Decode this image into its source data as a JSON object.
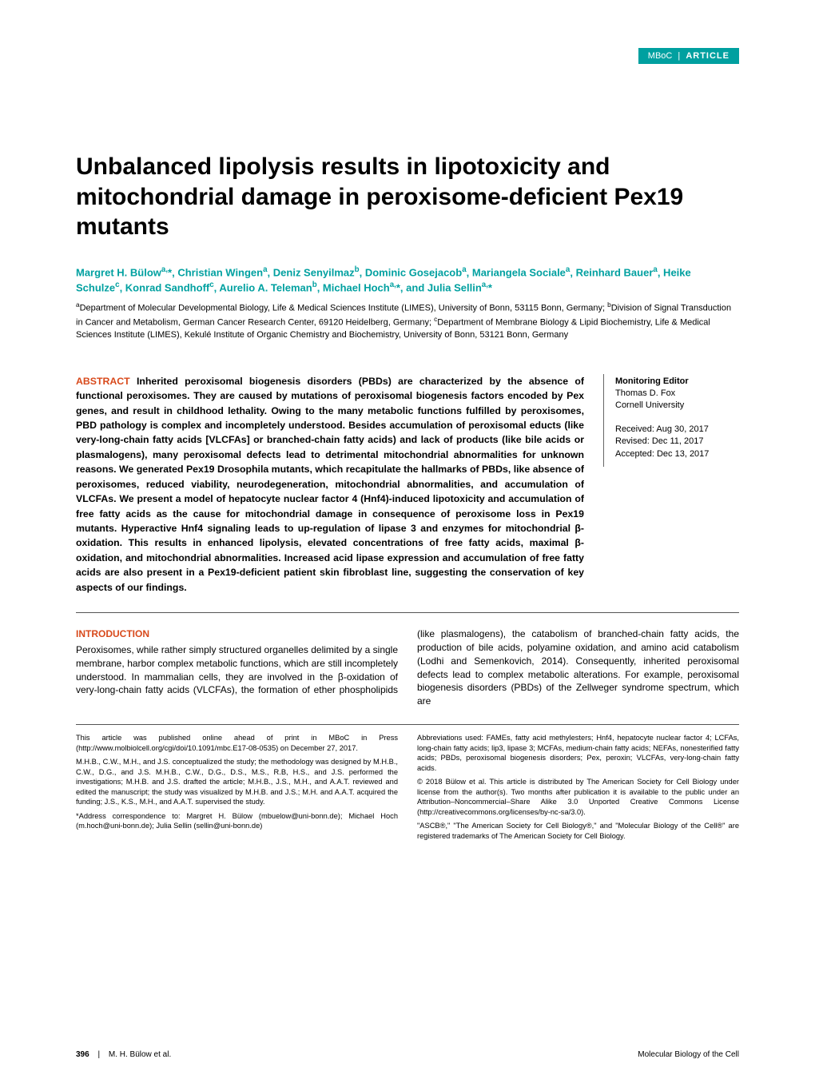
{
  "header": {
    "journal": "MBoC",
    "section": "ARTICLE",
    "bar_background": "#00a0a0",
    "bar_text_color": "#ffffff"
  },
  "title": "Unbalanced lipolysis results in lipotoxicity and mitochondrial damage in peroxisome-deficient Pex19 mutants",
  "authors_html": "Margret H. Bülow<sup>a,</sup>*, Christian Wingen<sup>a</sup>, Deniz Senyilmaz<sup>b</sup>, Dominic Gosejacob<sup>a</sup>, Mariangela Sociale<sup>a</sup>, Reinhard Bauer<sup>a</sup>, Heike Schulze<sup>c</sup>, Konrad Sandhoff<sup>c</sup>, Aurelio A. Teleman<sup>b</sup>, Michael Hoch<sup>a,</sup>*, and Julia Sellin<sup>a,</sup>*",
  "affiliations_html": "<sup>a</sup>Department of Molecular Developmental Biology, Life & Medical Sciences Institute (LIMES), University of Bonn, 53115 Bonn, Germany; <sup>b</sup>Division of Signal Transduction in Cancer and Metabolism, German Cancer Research Center, 69120 Heidelberg, Germany; <sup>c</sup>Department of Membrane Biology & Lipid Biochemistry, Life & Medical Sciences Institute (LIMES), Kekulé Institute of Organic Chemistry and Biochemistry, University of Bonn, 53121 Bonn, Germany",
  "abstract": {
    "label": "ABSTRACT",
    "text": "Inherited peroxisomal biogenesis disorders (PBDs) are characterized by the absence of functional peroxisomes. They are caused by mutations of peroxisomal biogenesis factors encoded by Pex genes, and result in childhood lethality. Owing to the many metabolic functions fulfilled by peroxisomes, PBD pathology is complex and incompletely understood. Besides accumulation of peroxisomal educts (like very-long-chain fatty acids [VLCFAs] or branched-chain fatty acids) and lack of products (like bile acids or plasmalogens), many peroxisomal defects lead to detrimental mitochondrial abnormalities for unknown reasons. We generated Pex19 Drosophila mutants, which recapitulate the hallmarks of PBDs, like absence of peroxisomes, reduced viability, neurodegeneration, mitochondrial abnormalities, and accumulation of VLCFAs. We present a model of hepatocyte nuclear factor 4 (Hnf4)-induced lipotoxicity and accumulation of free fatty acids as the cause for mitochondrial damage in consequence of peroxisome loss in Pex19 mutants. Hyperactive Hnf4 signaling leads to up-regulation of lipase 3 and enzymes for mitochondrial β-oxidation. This results in enhanced lipolysis, elevated concentrations of free fatty acids, maximal β-oxidation, and mitochondrial abnormalities. Increased acid lipase expression and accumulation of free fatty acids are also present in a Pex19-deficient patient skin fibroblast line, suggesting the conservation of key aspects of our findings."
  },
  "sidebar": {
    "editor_label": "Monitoring Editor",
    "editor_name": "Thomas D. Fox",
    "editor_affil": "Cornell University",
    "received": "Received: Aug 30, 2017",
    "revised": "Revised: Dec 11, 2017",
    "accepted": "Accepted: Dec 13, 2017"
  },
  "introduction": {
    "heading": "INTRODUCTION",
    "text": "Peroxisomes, while rather simply structured organelles delimited by a single membrane, harbor complex metabolic functions, which are still incompletely understood. In mammalian cells, they are involved in the β-oxidation of very-long-chain fatty acids (VLCFAs), the formation of ether phospholipids (like plasmalogens), the catabolism of branched-chain fatty acids, the production of bile acids, polyamine oxidation, and amino acid catabolism (Lodhi and Semenkovich, 2014). Consequently, inherited peroxisomal defects lead to complex metabolic alterations. For example, peroxisomal biogenesis disorders (PBDs) of the Zellweger syndrome spectrum, which are"
  },
  "footnotes": {
    "p1": "This article was published online ahead of print in MBoC in Press (http://www.molbiolcell.org/cgi/doi/10.1091/mbc.E17-08-0535) on December 27, 2017.",
    "p2": "M.H.B., C.W., M.H., and J.S. conceptualized the study; the methodology was designed by M.H.B., C.W., D.G., and J.S. M.H.B., C.W., D.G., D.S., M.S., R.B, H.S., and J.S. performed the investigations; M.H.B. and J.S. drafted the article; M.H.B., J.S., M.H., and A.A.T. reviewed and edited the manuscript; the study was visualized by M.H.B. and J.S.; M.H. and A.A.T. acquired the funding; J.S., K.S., M.H., and A.A.T. supervised the study.",
    "p3": "*Address correspondence to: Margret H. Bülow (mbuelow@uni-bonn.de); Michael Hoch (m.hoch@uni-bonn.de); Julia Sellin (sellin@uni-bonn.de)",
    "p4": "Abbreviations used: FAMEs, fatty acid methylesters; Hnf4, hepatocyte nuclear factor 4; LCFAs, long-chain fatty acids; lip3, lipase 3; MCFAs, medium-chain fatty acids; NEFAs, nonesterified fatty acids; PBDs, peroxisomal biogenesis disorders; Pex, peroxin; VLCFAs, very-long-chain fatty acids.",
    "p5": "© 2018 Bülow et al. This article is distributed by The American Society for Cell Biology under license from the author(s). Two months after publication it is available to the public under an Attribution–Noncommercial–Share Alike 3.0 Unported Creative Commons License (http://creativecommons.org/licenses/by-nc-sa/3.0).",
    "p6": "\"ASCB®,\" \"The American Society for Cell Biology®,\" and \"Molecular Biology of the Cell®\" are registered trademarks of The American Society for Cell Biology."
  },
  "footer": {
    "page": "396",
    "left_author": "M. H. Bülow et al.",
    "right": "Molecular Biology of the Cell"
  },
  "colors": {
    "accent_teal": "#00a0a0",
    "accent_orange": "#d8491b",
    "text": "#000000",
    "background": "#ffffff",
    "divider": "#555555"
  }
}
